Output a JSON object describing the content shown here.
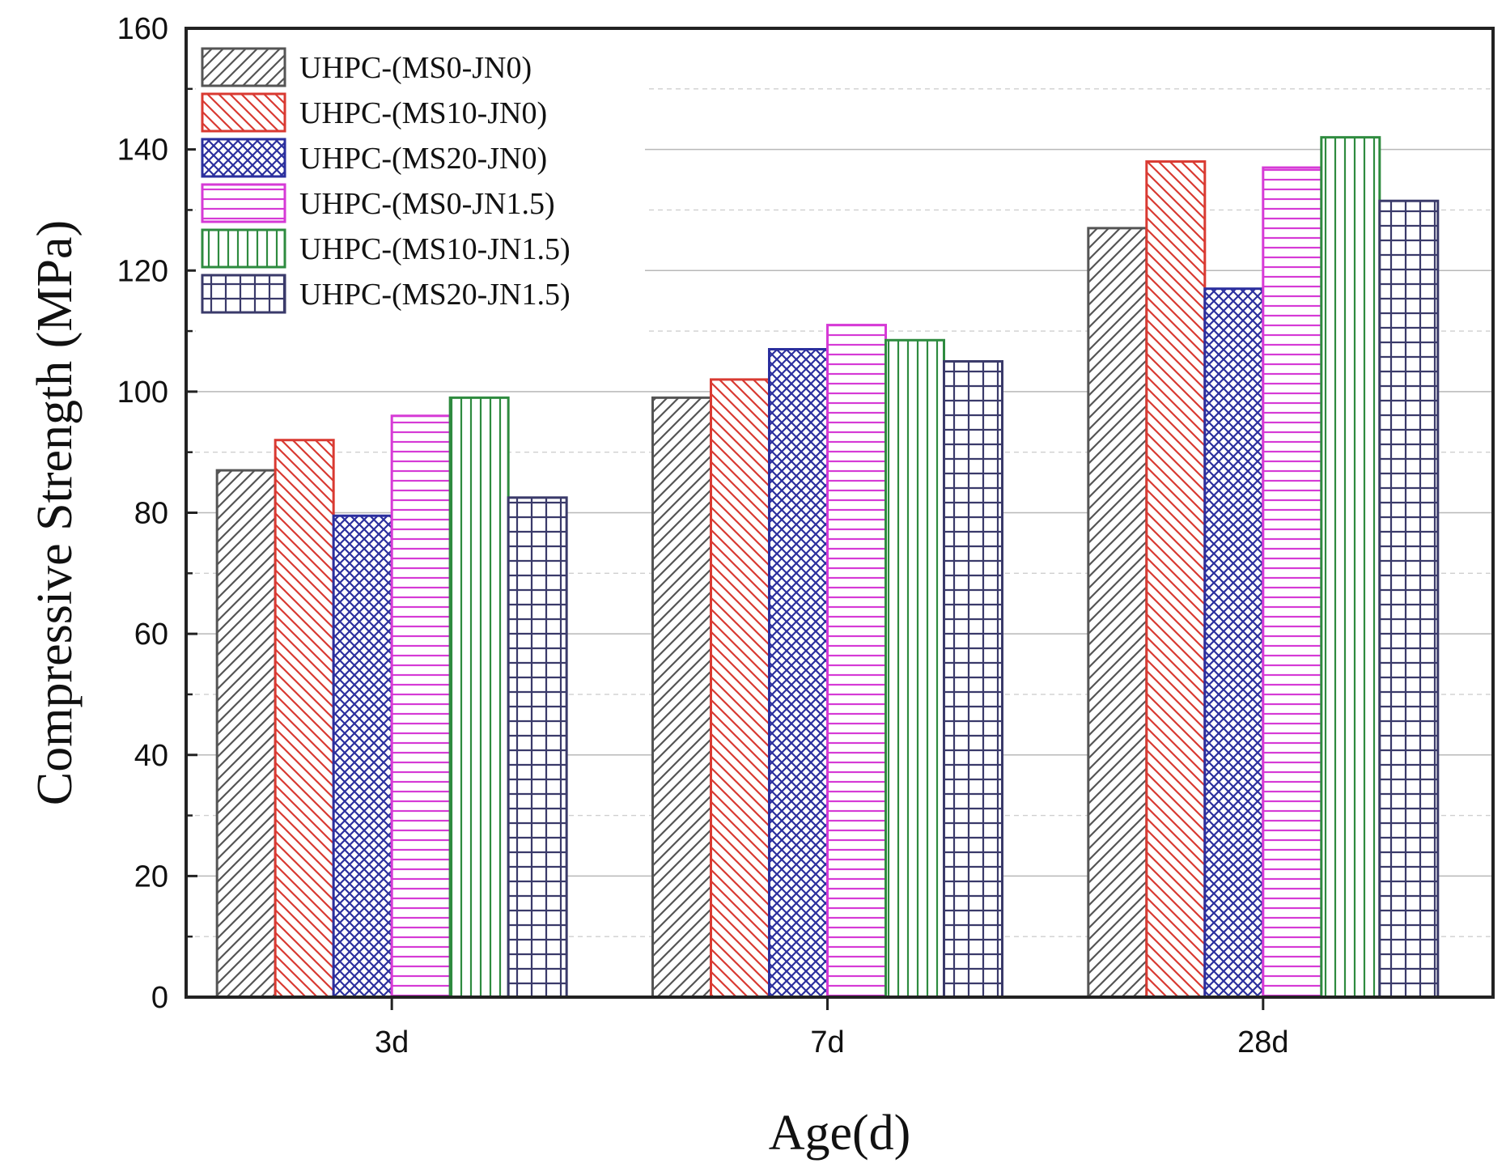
{
  "chart_data": {
    "type": "bar",
    "xlabel": "Age(d)",
    "ylabel": "Compressive Strength (MPa)",
    "ylim": [
      0,
      160
    ],
    "yticks": [
      0,
      20,
      40,
      60,
      80,
      100,
      120,
      140,
      160
    ],
    "grid": true,
    "legend_position": "top-left",
    "categories": [
      "3d",
      "7d",
      "28d"
    ],
    "series": [
      {
        "name": "UHPC-(MS0-JN0)",
        "values": [
          87,
          99,
          127
        ],
        "color": "#555555",
        "pattern": "diag-right"
      },
      {
        "name": "UHPC-(MS10-JN0)",
        "values": [
          92,
          102,
          138
        ],
        "color": "#d93a32",
        "pattern": "diag-left"
      },
      {
        "name": "UHPC-(MS20-JN0)",
        "values": [
          79.5,
          107,
          117
        ],
        "color": "#2b2f9e",
        "pattern": "crosshatch"
      },
      {
        "name": "UHPC-(MS0-JN1.5)",
        "values": [
          96,
          111,
          137
        ],
        "color": "#d63ad6",
        "pattern": "horizontal"
      },
      {
        "name": "UHPC-(MS10-JN1.5)",
        "values": [
          99,
          108.5,
          142
        ],
        "color": "#2e8b3f",
        "pattern": "vertical"
      },
      {
        "name": "UHPC-(MS20-JN1.5)",
        "values": [
          82.5,
          105,
          131.5
        ],
        "color": "#3a3a6a",
        "pattern": "grid"
      }
    ]
  }
}
